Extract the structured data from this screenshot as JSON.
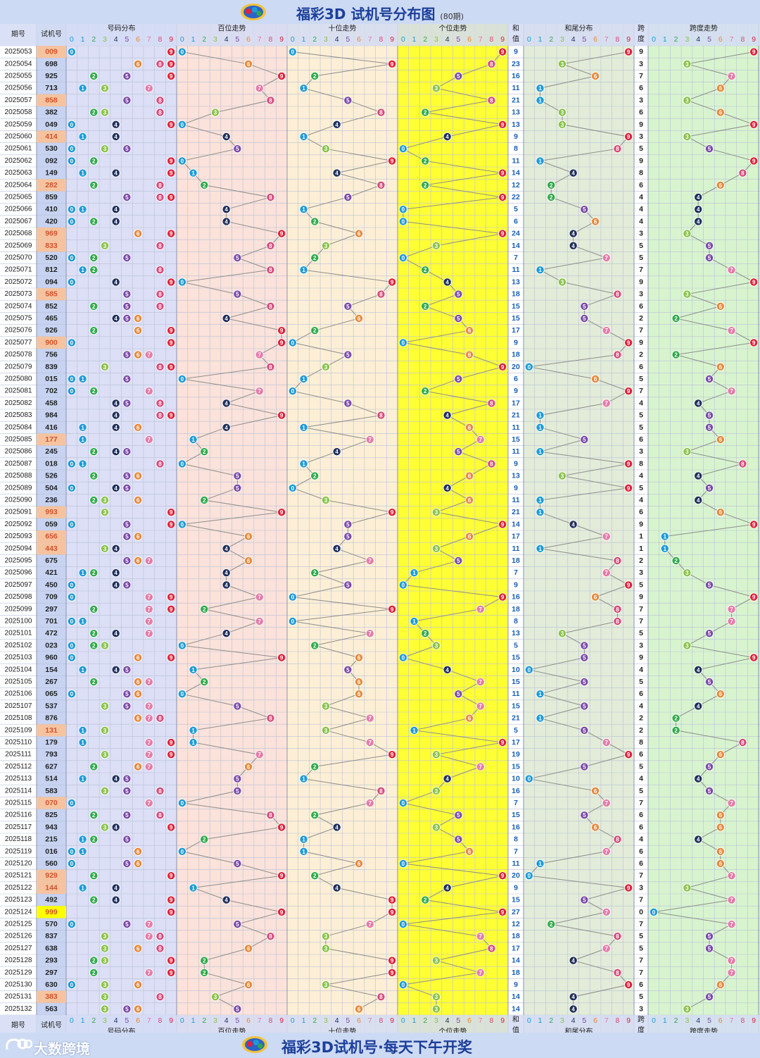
{
  "header": {
    "title": "福彩3D 试机号分布图",
    "period_note": "(80期)"
  },
  "footer": {
    "slogan": "福彩3D试机号·每天下午开奖",
    "brand": "大数跨境"
  },
  "columns": {
    "issue": "期号",
    "number": "试机号",
    "dist": "号码分布",
    "hundreds": "百位走势",
    "tens": "十位走势",
    "units": "个位走势",
    "sum_top": "和",
    "sum_bottom": "值",
    "sum_tail": "和尾分布",
    "span_top": "跨",
    "span_bottom": "度",
    "span_trend": "跨度走势",
    "digits": [
      "0",
      "1",
      "2",
      "3",
      "4",
      "5",
      "6",
      "7",
      "8",
      "9"
    ]
  },
  "colors": {
    "digit_colors": [
      "#1e9bd7",
      "#1e9bd7",
      "#2faa4a",
      "#8ac34a",
      "#1f2f5c",
      "#7a4aa8",
      "#e8893a",
      "#e67aa8",
      "#d94a7a",
      "#e0213a"
    ],
    "number_highlight_group3": "#f5c3a0",
    "number_highlight_triple": "#ffff00",
    "hundreds_bg": "#fbe2da",
    "tens_bg": "#fdefd5",
    "units_bg": "#ffff33",
    "sum_tail_bg": "#e3ecd8",
    "span_bg": "#d8f4cf",
    "dist_bg": "#dcdff6"
  },
  "chart_data": {
    "type": "table",
    "issues_count": 80,
    "rows": [
      {
        "issue": "2025053",
        "number": "009",
        "sum": 9,
        "span": 9
      },
      {
        "issue": "2025054",
        "number": "698",
        "sum": 23,
        "span": 3
      },
      {
        "issue": "2025055",
        "number": "925",
        "sum": 16,
        "span": 7
      },
      {
        "issue": "2025056",
        "number": "713",
        "sum": 11,
        "span": 6
      },
      {
        "issue": "2025057",
        "number": "858",
        "sum": 21,
        "span": 3
      },
      {
        "issue": "2025058",
        "number": "382",
        "sum": 13,
        "span": 6
      },
      {
        "issue": "2025059",
        "number": "049",
        "sum": 13,
        "span": 9
      },
      {
        "issue": "2025060",
        "number": "414",
        "sum": 9,
        "span": 3
      },
      {
        "issue": "2025061",
        "number": "530",
        "sum": 8,
        "span": 5
      },
      {
        "issue": "2025062",
        "number": "092",
        "sum": 11,
        "span": 9
      },
      {
        "issue": "2025063",
        "number": "149",
        "sum": 14,
        "span": 8
      },
      {
        "issue": "2025064",
        "number": "282",
        "sum": 12,
        "span": 6
      },
      {
        "issue": "2025065",
        "number": "859",
        "sum": 22,
        "span": 4
      },
      {
        "issue": "2025066",
        "number": "410",
        "sum": 5,
        "span": 4
      },
      {
        "issue": "2025067",
        "number": "420",
        "sum": 6,
        "span": 4
      },
      {
        "issue": "2025068",
        "number": "969",
        "sum": 24,
        "span": 3
      },
      {
        "issue": "2025069",
        "number": "833",
        "sum": 14,
        "span": 5
      },
      {
        "issue": "2025070",
        "number": "520",
        "sum": 7,
        "span": 5
      },
      {
        "issue": "2025071",
        "number": "812",
        "sum": 11,
        "span": 7
      },
      {
        "issue": "2025072",
        "number": "094",
        "sum": 13,
        "span": 9
      },
      {
        "issue": "2025073",
        "number": "585",
        "sum": 18,
        "span": 3
      },
      {
        "issue": "2025074",
        "number": "852",
        "sum": 15,
        "span": 6
      },
      {
        "issue": "2025075",
        "number": "465",
        "sum": 15,
        "span": 2
      },
      {
        "issue": "2025076",
        "number": "926",
        "sum": 17,
        "span": 7
      },
      {
        "issue": "2025077",
        "number": "900",
        "sum": 9,
        "span": 9
      },
      {
        "issue": "2025078",
        "number": "756",
        "sum": 18,
        "span": 2
      },
      {
        "issue": "2025079",
        "number": "839",
        "sum": 20,
        "span": 6
      },
      {
        "issue": "2025080",
        "number": "015",
        "sum": 6,
        "span": 5
      },
      {
        "issue": "2025081",
        "number": "702",
        "sum": 9,
        "span": 7
      },
      {
        "issue": "2025082",
        "number": "458",
        "sum": 17,
        "span": 4
      },
      {
        "issue": "2025083",
        "number": "984",
        "sum": 21,
        "span": 5
      },
      {
        "issue": "2025084",
        "number": "416",
        "sum": 11,
        "span": 5
      },
      {
        "issue": "2025085",
        "number": "177",
        "sum": 15,
        "span": 6
      },
      {
        "issue": "2025086",
        "number": "245",
        "sum": 11,
        "span": 3
      },
      {
        "issue": "2025087",
        "number": "018",
        "sum": 9,
        "span": 8
      },
      {
        "issue": "2025088",
        "number": "526",
        "sum": 13,
        "span": 4
      },
      {
        "issue": "2025089",
        "number": "504",
        "sum": 9,
        "span": 5
      },
      {
        "issue": "2025090",
        "number": "236",
        "sum": 11,
        "span": 4
      },
      {
        "issue": "2025091",
        "number": "993",
        "sum": 21,
        "span": 6
      },
      {
        "issue": "2025092",
        "number": "059",
        "sum": 14,
        "span": 9
      },
      {
        "issue": "2025093",
        "number": "656",
        "sum": 17,
        "span": 1
      },
      {
        "issue": "2025094",
        "number": "443",
        "sum": 11,
        "span": 1
      },
      {
        "issue": "2025095",
        "number": "675",
        "sum": 18,
        "span": 2
      },
      {
        "issue": "2025096",
        "number": "421",
        "sum": 7,
        "span": 3
      },
      {
        "issue": "2025097",
        "number": "450",
        "sum": 9,
        "span": 5
      },
      {
        "issue": "2025098",
        "number": "709",
        "sum": 16,
        "span": 9
      },
      {
        "issue": "2025099",
        "number": "297",
        "sum": 18,
        "span": 7
      },
      {
        "issue": "2025100",
        "number": "701",
        "sum": 8,
        "span": 7
      },
      {
        "issue": "2025101",
        "number": "472",
        "sum": 13,
        "span": 5
      },
      {
        "issue": "2025102",
        "number": "023",
        "sum": 5,
        "span": 3
      },
      {
        "issue": "2025103",
        "number": "960",
        "sum": 15,
        "span": 9
      },
      {
        "issue": "2025104",
        "number": "154",
        "sum": 10,
        "span": 4
      },
      {
        "issue": "2025105",
        "number": "267",
        "sum": 15,
        "span": 5
      },
      {
        "issue": "2025106",
        "number": "065",
        "sum": 11,
        "span": 6
      },
      {
        "issue": "2025107",
        "number": "537",
        "sum": 15,
        "span": 4
      },
      {
        "issue": "2025108",
        "number": "876",
        "sum": 21,
        "span": 2
      },
      {
        "issue": "2025109",
        "number": "131",
        "sum": 5,
        "span": 2
      },
      {
        "issue": "2025110",
        "number": "179",
        "sum": 17,
        "span": 8
      },
      {
        "issue": "2025111",
        "number": "793",
        "sum": 19,
        "span": 6
      },
      {
        "issue": "2025112",
        "number": "627",
        "sum": 15,
        "span": 5
      },
      {
        "issue": "2025113",
        "number": "514",
        "sum": 10,
        "span": 4
      },
      {
        "issue": "2025114",
        "number": "583",
        "sum": 16,
        "span": 5
      },
      {
        "issue": "2025115",
        "number": "070",
        "sum": 7,
        "span": 7
      },
      {
        "issue": "2025116",
        "number": "825",
        "sum": 15,
        "span": 6
      },
      {
        "issue": "2025117",
        "number": "943",
        "sum": 16,
        "span": 6
      },
      {
        "issue": "2025118",
        "number": "215",
        "sum": 8,
        "span": 4
      },
      {
        "issue": "2025119",
        "number": "016",
        "sum": 7,
        "span": 6
      },
      {
        "issue": "2025120",
        "number": "560",
        "sum": 11,
        "span": 6
      },
      {
        "issue": "2025121",
        "number": "929",
        "sum": 20,
        "span": 7
      },
      {
        "issue": "2025122",
        "number": "144",
        "sum": 9,
        "span": 3
      },
      {
        "issue": "2025123",
        "number": "492",
        "sum": 15,
        "span": 7
      },
      {
        "issue": "2025124",
        "number": "999",
        "sum": 27,
        "span": 0
      },
      {
        "issue": "2025125",
        "number": "570",
        "sum": 12,
        "span": 7
      },
      {
        "issue": "2025126",
        "number": "837",
        "sum": 18,
        "span": 5
      },
      {
        "issue": "2025127",
        "number": "638",
        "sum": 17,
        "span": 5
      },
      {
        "issue": "2025128",
        "number": "293",
        "sum": 14,
        "span": 7
      },
      {
        "issue": "2025129",
        "number": "297",
        "sum": 18,
        "span": 7
      },
      {
        "issue": "2025130",
        "number": "630",
        "sum": 9,
        "span": 6
      },
      {
        "issue": "2025131",
        "number": "383",
        "sum": 14,
        "span": 5
      },
      {
        "issue": "2025132",
        "number": "563",
        "sum": 14,
        "span": 3
      }
    ]
  }
}
